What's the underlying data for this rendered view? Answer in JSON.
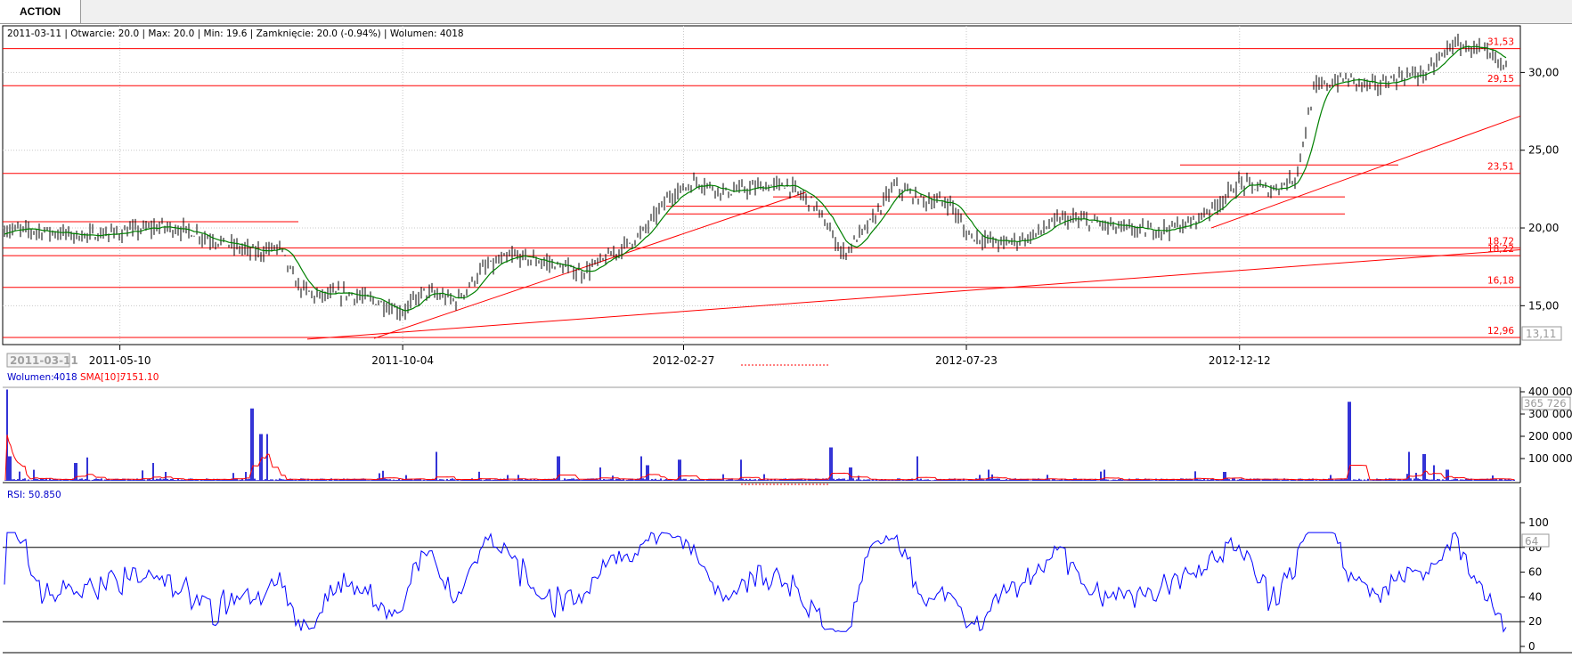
{
  "tab": {
    "label": "ACTION"
  },
  "colors": {
    "candle": "#000000",
    "sma": "#008000",
    "levels": "#ff0000",
    "volume": "#0000cc",
    "volume_sma": "#ff0000",
    "rsi": "#0000ff"
  },
  "price_panel": {
    "info": "2011-03-11 | Otwarcie: 20.0 | Max: 20.0 | Min: 19.6 | Zamknięcie: 20.0 (-0.94%) | Wolumen: 4018",
    "y_ticks": [
      "30,00",
      "25,00",
      "20,00",
      "15,00"
    ],
    "current_label": "13,11",
    "levels": [
      {
        "label": "31,53"
      },
      {
        "label": "29,15"
      },
      {
        "label": "23,51"
      },
      {
        "label": "18,72"
      },
      {
        "label": "18,22"
      },
      {
        "label": "16,18"
      },
      {
        "label": "12,96"
      }
    ]
  },
  "date_axis": {
    "cursor_date": "2011-03-11",
    "ticks": [
      "2011-05-10",
      "2011-10-04",
      "2012-02-27",
      "2012-07-23",
      "2012-12-12"
    ]
  },
  "volume_panel": {
    "title": "Wolumen:",
    "value": "4018",
    "sma_label": "SMA[10]:",
    "sma_value": "7151.10",
    "y_ticks": [
      "400 000",
      "300 000",
      "200 000",
      "100 000"
    ],
    "current_label": "365 726"
  },
  "rsi_panel": {
    "label": "RSI: 50.850",
    "y_ticks": [
      "100",
      "80",
      "60",
      "40",
      "20",
      "0"
    ],
    "current_label": "64"
  },
  "chart_data": {
    "type": "line",
    "description_series": "Candlestick price chart with SMA, volume bars and RSI",
    "series": [
      {
        "name": "price",
        "points": [
          [
            "2011-03-11",
            19.9
          ],
          [
            "2011-04-01",
            19.8
          ],
          [
            "2011-04-20",
            19.5
          ],
          [
            "2011-05-10",
            19.7
          ],
          [
            "2011-06-01",
            20.1
          ],
          [
            "2011-06-15",
            19.8
          ],
          [
            "2011-07-01",
            19.1
          ],
          [
            "2011-07-20",
            18.4
          ],
          [
            "2011-08-01",
            18.8
          ],
          [
            "2011-08-10",
            16.3
          ],
          [
            "2011-08-20",
            15.6
          ],
          [
            "2011-09-05",
            15.8
          ],
          [
            "2011-09-20",
            15.3
          ],
          [
            "2011-10-04",
            14.6
          ],
          [
            "2011-10-15",
            15.9
          ],
          [
            "2011-11-01",
            15.3
          ],
          [
            "2011-11-15",
            17.4
          ],
          [
            "2011-12-01",
            18.2
          ],
          [
            "2011-12-20",
            17.7
          ],
          [
            "2012-01-05",
            17.1
          ],
          [
            "2012-01-20",
            18.2
          ],
          [
            "2012-02-05",
            19.6
          ],
          [
            "2012-02-20",
            22.1
          ],
          [
            "2012-03-05",
            23.0
          ],
          [
            "2012-03-20",
            22.3
          ],
          [
            "2012-04-05",
            22.6
          ],
          [
            "2012-04-20",
            22.8
          ],
          [
            "2012-05-05",
            21.5
          ],
          [
            "2012-05-20",
            18.3
          ],
          [
            "2012-06-05",
            20.6
          ],
          [
            "2012-06-15",
            22.7
          ],
          [
            "2012-06-30",
            21.8
          ],
          [
            "2012-07-15",
            21.6
          ],
          [
            "2012-07-23",
            19.6
          ],
          [
            "2012-08-10",
            19.0
          ],
          [
            "2012-08-25",
            19.4
          ],
          [
            "2012-09-10",
            20.6
          ],
          [
            "2012-09-25",
            20.4
          ],
          [
            "2012-10-10",
            20.0
          ],
          [
            "2012-10-25",
            19.8
          ],
          [
            "2012-11-15",
            20.2
          ],
          [
            "2012-12-01",
            21.6
          ],
          [
            "2012-12-12",
            22.9
          ],
          [
            "2012-12-28",
            22.4
          ],
          [
            "2013-01-10",
            23.2
          ],
          [
            "2013-01-20",
            29.0
          ],
          [
            "2013-02-05",
            29.6
          ],
          [
            "2013-02-20",
            29.1
          ],
          [
            "2013-03-05",
            29.7
          ],
          [
            "2013-03-20",
            30.0
          ],
          [
            "2013-04-01",
            31.8
          ],
          [
            "2013-04-15",
            31.5
          ],
          [
            "2013-04-30",
            30.3
          ]
        ]
      }
    ],
    "ylim": [
      12.5,
      33.0
    ],
    "rsi_range": [
      0,
      100
    ],
    "rsi_levels": [
      20,
      80
    ],
    "volume_ylim": [
      0,
      400000
    ],
    "horizontal_levels": [
      31.53,
      29.15,
      23.51,
      21.4,
      18.72,
      18.22,
      16.18,
      12.96
    ],
    "grid": true,
    "legend": "none"
  }
}
